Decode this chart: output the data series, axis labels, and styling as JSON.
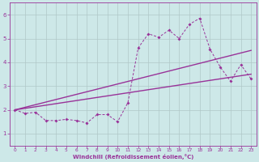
{
  "bg_color": "#cde8e8",
  "grid_color": "#b0c8c8",
  "line_color": "#993399",
  "xlabel": "Windchill (Refroidissement éolien,°C)",
  "xlim": [
    -0.5,
    23.5
  ],
  "ylim": [
    0.5,
    6.5
  ],
  "yticks": [
    1,
    2,
    3,
    4,
    5,
    6
  ],
  "xticks": [
    0,
    1,
    2,
    3,
    4,
    5,
    6,
    7,
    8,
    9,
    10,
    11,
    12,
    13,
    14,
    15,
    16,
    17,
    18,
    19,
    20,
    21,
    22,
    23
  ],
  "series1_x": [
    0,
    1,
    2,
    3,
    4,
    5,
    6,
    7,
    8,
    9,
    10,
    11,
    12,
    13,
    14,
    15,
    16,
    17,
    18,
    19,
    20,
    21,
    22,
    23
  ],
  "series1_y": [
    2.0,
    1.85,
    1.9,
    1.55,
    1.55,
    1.6,
    1.55,
    1.45,
    1.8,
    1.8,
    1.5,
    2.3,
    4.6,
    5.2,
    5.05,
    5.35,
    5.0,
    5.6,
    5.85,
    4.55,
    3.8,
    3.2,
    3.9,
    3.3
  ],
  "trend1_x": [
    0,
    23
  ],
  "trend1_y": [
    2.0,
    4.5
  ],
  "trend2_x": [
    0,
    23
  ],
  "trend2_y": [
    2.0,
    3.5
  ]
}
